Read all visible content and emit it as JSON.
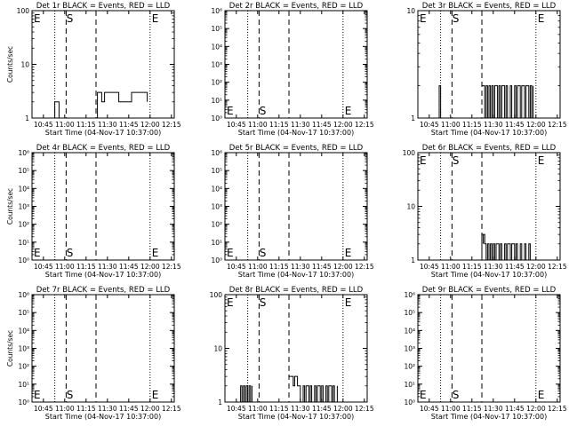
{
  "colors": {
    "events": "#000000",
    "background": "#ffffff"
  },
  "chart_data": [
    {
      "type": "line",
      "title": "Det 1r BLACK = Events, RED = LLD",
      "ylabel": "Counts/sec",
      "xlabel": "Start Time (04-Nov-17 10:37:00)",
      "xticks": [
        "10:45",
        "11:00",
        "11:15",
        "11:30",
        "11:45",
        "12:00",
        "12:15"
      ],
      "xlim": [
        "10:37",
        "12:17"
      ],
      "yscale": "log",
      "ylim": [
        1,
        100
      ],
      "ytick_labels": [
        "1",
        "10",
        "100"
      ],
      "ytick_values": [
        1,
        10,
        100
      ],
      "grid": false,
      "markers": [
        {
          "label": "E",
          "time": "10:37",
          "position": "top"
        },
        {
          "label": "S",
          "time": "11:00",
          "position": "top"
        },
        {
          "label": "E",
          "time": "12:00",
          "position": "top"
        }
      ],
      "dotted_lines": [
        "10:53",
        "12:00"
      ],
      "dashed_lines": [
        "11:01",
        "11:22"
      ],
      "series": [
        {
          "x": [
            "10:53",
            "10:53",
            "10:56",
            "10:56",
            "10:58"
          ],
          "y": [
            1,
            2,
            2,
            1,
            1
          ],
          "style": "step"
        },
        {
          "x": [
            "11:22",
            "11:23",
            "11:25",
            "11:26",
            "11:28",
            "11:36",
            "11:38",
            "11:45",
            "11:47",
            "11:58"
          ],
          "y": [
            1,
            3,
            3,
            2,
            3,
            3,
            2,
            2,
            3,
            2
          ],
          "style": "step"
        }
      ]
    },
    {
      "type": "line",
      "title": "Det 2r BLACK = Events, RED = LLD",
      "ylabel": "",
      "xlabel": "Start Time (04-Nov-17 10:37:00)",
      "xticks": [
        "10:45",
        "11:00",
        "11:15",
        "11:30",
        "11:45",
        "12:00",
        "12:15"
      ],
      "xlim": [
        "10:37",
        "12:17"
      ],
      "yscale": "log",
      "ylim": [
        1,
        1000000
      ],
      "ytick_labels": [
        "10⁰",
        "10¹",
        "10²",
        "10³",
        "10⁴",
        "10⁵",
        "10⁶"
      ],
      "ytick_values": [
        1,
        10,
        100,
        1000,
        10000,
        100000,
        1000000
      ],
      "grid": false,
      "markers": [
        {
          "label": "E",
          "time": "10:37",
          "position": "bottom"
        },
        {
          "label": "S",
          "time": "11:00",
          "position": "bottom"
        },
        {
          "label": "E",
          "time": "12:00",
          "position": "bottom"
        }
      ],
      "dotted_lines": [
        "10:53",
        "12:00"
      ],
      "dashed_lines": [
        "11:01",
        "11:22"
      ],
      "series": []
    },
    {
      "type": "line",
      "title": "Det 3r BLACK = Events, RED = LLD",
      "ylabel": "",
      "xlabel": "Start Time (04-Nov-17 10:37:00)",
      "xticks": [
        "10:45",
        "11:00",
        "11:15",
        "11:30",
        "11:45",
        "12:00",
        "12:15"
      ],
      "xlim": [
        "10:37",
        "12:17"
      ],
      "yscale": "log",
      "ylim": [
        1,
        10
      ],
      "ytick_labels": [
        "1",
        "10"
      ],
      "ytick_values": [
        1,
        10
      ],
      "grid": false,
      "markers": [
        {
          "label": "E",
          "time": "10:37",
          "position": "top"
        },
        {
          "label": "S",
          "time": "11:00",
          "position": "top"
        },
        {
          "label": "E",
          "time": "12:00",
          "position": "top"
        }
      ],
      "dotted_lines": [
        "10:53",
        "12:00"
      ],
      "dashed_lines": [
        "11:01",
        "11:22"
      ],
      "series": [
        {
          "x": [
            "10:52",
            "10:52",
            "10:53",
            "10:53"
          ],
          "y": [
            1,
            2,
            2,
            1
          ],
          "style": "step"
        },
        {
          "x": [
            "11:22",
            "11:23",
            "11:24",
            "11:25",
            "11:26",
            "11:27",
            "11:28",
            "11:29",
            "11:30",
            "11:31",
            "11:33",
            "11:34",
            "11:35",
            "11:36",
            "11:38",
            "11:39",
            "11:40",
            "11:42",
            "11:43",
            "11:45",
            "11:46",
            "11:47",
            "11:49",
            "11:50",
            "11:52",
            "11:53",
            "11:55",
            "11:56",
            "11:57",
            "11:58"
          ],
          "y": [
            2,
            2,
            1,
            2,
            1,
            2,
            1,
            2,
            1,
            2,
            1,
            2,
            1,
            2,
            1,
            2,
            1,
            2,
            1,
            2,
            1,
            2,
            1,
            2,
            1,
            2,
            1,
            2,
            1,
            2
          ],
          "style": "step"
        }
      ]
    },
    {
      "type": "line",
      "title": "Det 4r BLACK = Events, RED = LLD",
      "ylabel": "Counts/sec",
      "xlabel": "Start Time (04-Nov-17 10:37:00)",
      "xticks": [
        "10:45",
        "11:00",
        "11:15",
        "11:30",
        "11:45",
        "12:00",
        "12:15"
      ],
      "xlim": [
        "10:37",
        "12:17"
      ],
      "yscale": "log",
      "ylim": [
        1,
        1000000
      ],
      "ytick_labels": [
        "10⁰",
        "10¹",
        "10²",
        "10³",
        "10⁴",
        "10⁵",
        "10⁶"
      ],
      "ytick_values": [
        1,
        10,
        100,
        1000,
        10000,
        100000,
        1000000
      ],
      "grid": false,
      "markers": [
        {
          "label": "E",
          "time": "10:37",
          "position": "bottom"
        },
        {
          "label": "S",
          "time": "11:00",
          "position": "bottom"
        },
        {
          "label": "E",
          "time": "12:00",
          "position": "bottom"
        }
      ],
      "dotted_lines": [
        "10:53",
        "12:00"
      ],
      "dashed_lines": [
        "11:01",
        "11:22"
      ],
      "series": []
    },
    {
      "type": "line",
      "title": "Det 5r BLACK = Events, RED = LLD",
      "ylabel": "",
      "xlabel": "Start Time (04-Nov-17 10:37:00)",
      "xticks": [
        "10:45",
        "11:00",
        "11:15",
        "11:30",
        "11:45",
        "12:00",
        "12:15"
      ],
      "xlim": [
        "10:37",
        "12:17"
      ],
      "yscale": "log",
      "ylim": [
        1,
        1000000
      ],
      "ytick_labels": [
        "10⁰",
        "10¹",
        "10²",
        "10³",
        "10⁴",
        "10⁵",
        "10⁶"
      ],
      "ytick_values": [
        1,
        10,
        100,
        1000,
        10000,
        100000,
        1000000
      ],
      "grid": false,
      "markers": [
        {
          "label": "E",
          "time": "10:37",
          "position": "bottom"
        },
        {
          "label": "S",
          "time": "11:00",
          "position": "bottom"
        },
        {
          "label": "E",
          "time": "12:00",
          "position": "bottom"
        }
      ],
      "dotted_lines": [
        "10:53",
        "12:00"
      ],
      "dashed_lines": [
        "11:01",
        "11:22"
      ],
      "series": []
    },
    {
      "type": "line",
      "title": "Det 6r BLACK = Events, RED = LLD",
      "ylabel": "",
      "xlabel": "Start Time (04-Nov-17 10:37:00)",
      "xticks": [
        "10:45",
        "11:00",
        "11:15",
        "11:30",
        "11:45",
        "12:00",
        "12:15"
      ],
      "xlim": [
        "10:37",
        "12:17"
      ],
      "yscale": "log",
      "ylim": [
        1,
        100
      ],
      "ytick_labels": [
        "1",
        "10",
        "100"
      ],
      "ytick_values": [
        1,
        10,
        100
      ],
      "grid": false,
      "markers": [
        {
          "label": "E",
          "time": "10:37",
          "position": "top"
        },
        {
          "label": "S",
          "time": "11:00",
          "position": "top"
        },
        {
          "label": "E",
          "time": "12:00",
          "position": "top"
        }
      ],
      "dotted_lines": [
        "10:53",
        "12:00"
      ],
      "dashed_lines": [
        "11:01",
        "11:22"
      ],
      "series": [
        {
          "x": [
            "11:22",
            "11:22",
            "11:23",
            "11:23",
            "11:24",
            "11:25",
            "11:26",
            "11:27",
            "11:28",
            "11:29",
            "11:30",
            "11:31",
            "11:32",
            "11:34",
            "11:35",
            "11:36",
            "11:38",
            "11:39",
            "11:40",
            "11:42",
            "11:43",
            "11:45",
            "11:46",
            "11:47",
            "11:49",
            "11:50",
            "11:52",
            "11:53",
            "11:55",
            "11:56"
          ],
          "y": [
            1,
            3,
            2,
            3,
            2,
            1,
            2,
            1,
            2,
            1,
            2,
            1,
            2,
            1,
            2,
            1,
            2,
            1,
            2,
            1,
            2,
            1,
            2,
            1,
            2,
            1,
            2,
            1,
            2,
            1
          ],
          "style": "step"
        }
      ]
    },
    {
      "type": "line",
      "title": "Det 7r BLACK = Events, RED = LLD",
      "ylabel": "Counts/sec",
      "xlabel": "Start Time (04-Nov-17 10:37:00)",
      "xticks": [
        "10:45",
        "11:00",
        "11:15",
        "11:30",
        "11:45",
        "12:00",
        "12:15"
      ],
      "xlim": [
        "10:37",
        "12:17"
      ],
      "yscale": "log",
      "ylim": [
        1,
        1000000
      ],
      "ytick_labels": [
        "10⁰",
        "10¹",
        "10²",
        "10³",
        "10⁴",
        "10⁵",
        "10⁶"
      ],
      "ytick_values": [
        1,
        10,
        100,
        1000,
        10000,
        100000,
        1000000
      ],
      "grid": false,
      "markers": [
        {
          "label": "E",
          "time": "10:37",
          "position": "bottom"
        },
        {
          "label": "S",
          "time": "11:00",
          "position": "bottom"
        },
        {
          "label": "E",
          "time": "12:00",
          "position": "bottom"
        }
      ],
      "dotted_lines": [
        "10:53",
        "12:00"
      ],
      "dashed_lines": [
        "11:01",
        "11:22"
      ],
      "series": []
    },
    {
      "type": "line",
      "title": "Det 8r BLACK = Events, RED = LLD",
      "ylabel": "",
      "xlabel": "Start Time (04-Nov-17 10:37:00)",
      "xticks": [
        "10:45",
        "11:00",
        "11:15",
        "11:30",
        "11:45",
        "12:00",
        "12:15"
      ],
      "xlim": [
        "10:37",
        "12:17"
      ],
      "yscale": "log",
      "ylim": [
        1,
        100
      ],
      "ytick_labels": [
        "1",
        "10",
        "100"
      ],
      "ytick_values": [
        1,
        10,
        100
      ],
      "grid": false,
      "markers": [
        {
          "label": "E",
          "time": "10:37",
          "position": "top"
        },
        {
          "label": "S",
          "time": "11:00",
          "position": "top"
        },
        {
          "label": "E",
          "time": "12:00",
          "position": "top"
        }
      ],
      "dotted_lines": [
        "10:53",
        "12:00"
      ],
      "dashed_lines": [
        "11:01",
        "11:22"
      ],
      "series": [
        {
          "x": [
            "10:47",
            "10:48",
            "10:49",
            "10:50",
            "10:51",
            "10:52",
            "10:53",
            "10:54",
            "10:55",
            "10:56"
          ],
          "y": [
            1,
            2,
            1,
            2,
            1,
            2,
            1,
            2,
            1,
            2
          ],
          "style": "step"
        },
        {
          "x": [
            "11:22",
            "11:23",
            "11:25",
            "11:26",
            "11:28",
            "11:30",
            "11:32",
            "11:33",
            "11:34",
            "11:36",
            "11:37",
            "11:38",
            "11:40",
            "11:41",
            "11:42",
            "11:44",
            "11:45",
            "11:46",
            "11:48",
            "11:49",
            "11:50",
            "11:52",
            "11:53",
            "11:54",
            "11:56"
          ],
          "y": [
            3,
            3,
            2,
            3,
            2,
            1,
            2,
            1,
            2,
            1,
            2,
            1,
            2,
            1,
            2,
            1,
            2,
            1,
            2,
            1,
            2,
            1,
            2,
            1,
            2
          ],
          "style": "step"
        }
      ]
    },
    {
      "type": "line",
      "title": "Det 9r BLACK = Events, RED = LLD",
      "ylabel": "",
      "xlabel": "Start Time (04-Nov-17 10:37:00)",
      "xticks": [
        "10:45",
        "11:00",
        "11:15",
        "11:30",
        "11:45",
        "12:00",
        "12:15"
      ],
      "xlim": [
        "10:37",
        "12:17"
      ],
      "yscale": "log",
      "ylim": [
        1,
        1000000
      ],
      "ytick_labels": [
        "10⁰",
        "10¹",
        "10²",
        "10³",
        "10⁴",
        "10⁵",
        "10⁶"
      ],
      "ytick_values": [
        1,
        10,
        100,
        1000,
        10000,
        100000,
        1000000
      ],
      "grid": false,
      "markers": [
        {
          "label": "E",
          "time": "10:37",
          "position": "bottom"
        },
        {
          "label": "S",
          "time": "11:00",
          "position": "bottom"
        },
        {
          "label": "E",
          "time": "12:00",
          "position": "bottom"
        }
      ],
      "dotted_lines": [
        "10:53",
        "12:00"
      ],
      "dashed_lines": [
        "11:01",
        "11:22"
      ],
      "series": []
    }
  ]
}
